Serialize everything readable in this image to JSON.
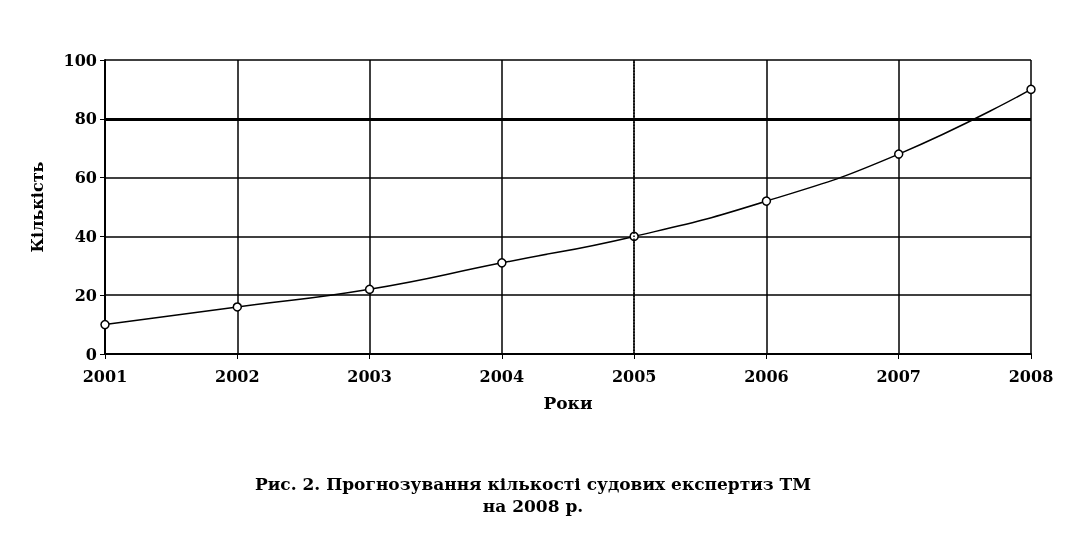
{
  "chart_data": {
    "type": "line",
    "xlabel": "Роки",
    "ylabel": "Кількість",
    "categories": [
      "2001",
      "2002",
      "2003",
      "2004",
      "2005",
      "2006",
      "2007",
      "2008"
    ],
    "series": [
      {
        "color": "#000000",
        "values": [
          10,
          16,
          22,
          31,
          40,
          52,
          68,
          90
        ]
      }
    ],
    "ylim": [
      0,
      100
    ],
    "yticks": [
      0,
      20,
      40,
      60,
      80,
      100
    ],
    "grid": true,
    "marker": "circle",
    "line_style": "solid",
    "ref_lines": [
      {
        "axis": "y",
        "value": 80,
        "color": "#000000",
        "line_style": "solid"
      },
      {
        "axis": "x",
        "value": "2005",
        "color": "#000000",
        "line_style": "dotted"
      }
    ],
    "annotations": [
      "Рис. 2. Прогнозування кількості судових експертиз ТМ\nна 2008 р."
    ]
  }
}
